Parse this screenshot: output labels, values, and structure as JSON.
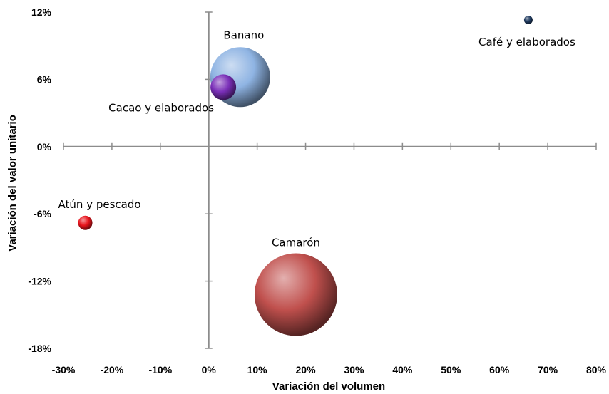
{
  "chart_data": {
    "type": "bubble",
    "xlabel": "Variación del volumen",
    "ylabel": "Variación del valor unitario",
    "xlim": [
      -30,
      80
    ],
    "ylim": [
      -18,
      12
    ],
    "x_ticks": [
      -30,
      -20,
      -10,
      0,
      10,
      20,
      30,
      40,
      50,
      60,
      70,
      80
    ],
    "y_ticks": [
      12,
      6,
      0,
      -6,
      -12,
      -18
    ],
    "x_tick_labels": [
      "-30%",
      "-20%",
      "-10%",
      "0%",
      "10%",
      "20%",
      "30%",
      "40%",
      "50%",
      "60%",
      "70%",
      "80%"
    ],
    "y_tick_labels": [
      "12%",
      "6%",
      "0%",
      "-6%",
      "-12%",
      "-18%"
    ],
    "grid": false,
    "legend": "none",
    "points": [
      {
        "label": "Banano",
        "x": 6.5,
        "y": 6.2,
        "size": 42,
        "color": "#8fb4e3"
      },
      {
        "label": "Cacao y elaborados",
        "x": 3,
        "y": 5.3,
        "size": 18,
        "color": "#7a2fb8"
      },
      {
        "label": "Café y elaborados",
        "x": 66,
        "y": 11.3,
        "size": 6,
        "color": "#1f3a5f"
      },
      {
        "label": "Atún y pescado",
        "x": -25.5,
        "y": -6.8,
        "size": 10,
        "color": "#e8141c"
      },
      {
        "label": "Camarón",
        "x": 18,
        "y": -13.2,
        "size": 58,
        "color": "#c0504d"
      }
    ]
  }
}
